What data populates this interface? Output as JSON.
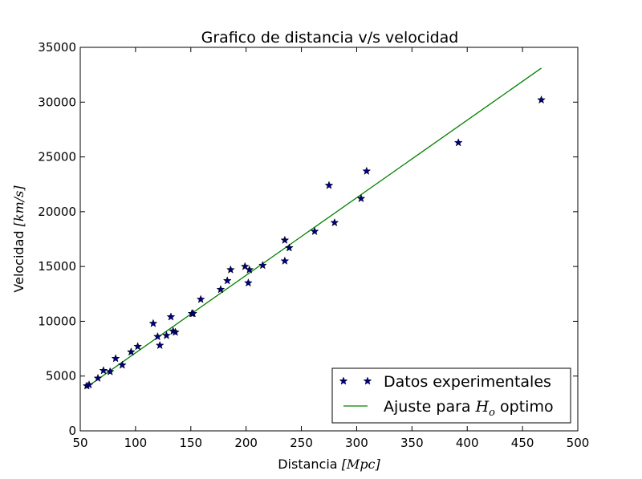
{
  "chart_data": {
    "type": "scatter",
    "title": "Grafico de distancia v/s velocidad",
    "xlabel": {
      "prefix": "Distancia ",
      "math": "[Mpc]"
    },
    "ylabel": {
      "prefix": "Velocidad ",
      "math": "[km/s]"
    },
    "xlim": [
      50,
      500
    ],
    "ylim": [
      0,
      35000
    ],
    "xticks": [
      50,
      100,
      150,
      200,
      250,
      300,
      350,
      400,
      450,
      500
    ],
    "yticks": [
      0,
      5000,
      10000,
      15000,
      20000,
      25000,
      30000,
      35000
    ],
    "grid": false,
    "legend_position": "lower-right",
    "colors": {
      "points": "#000080",
      "fit": "#008000"
    },
    "series": [
      {
        "name": "Datos experimentales",
        "kind": "points",
        "x": [
          56,
          58,
          66,
          71,
          77,
          82,
          88,
          96,
          102,
          116,
          120,
          122,
          128,
          132,
          134,
          136,
          151,
          152,
          159,
          177,
          183,
          186,
          199,
          202,
          203,
          215,
          235,
          235,
          239,
          262,
          275,
          280,
          304,
          309,
          392,
          467
        ],
        "y": [
          4100,
          4200,
          4800,
          5500,
          5400,
          6600,
          6000,
          7200,
          7700,
          9800,
          8600,
          7800,
          8700,
          10400,
          9100,
          9000,
          10700,
          10700,
          12000,
          12900,
          13700,
          14700,
          15000,
          13500,
          14700,
          15100,
          15500,
          17400,
          16700,
          18200,
          22400,
          19000,
          21200,
          23700,
          26300,
          30200
        ]
      },
      {
        "name_prefix": "Ajuste para ",
        "name_math": "H",
        "name_sub": "o",
        "name_suffix": " optimo",
        "kind": "line",
        "x": [
          56,
          467
        ],
        "y": [
          4000,
          33100
        ]
      }
    ]
  }
}
